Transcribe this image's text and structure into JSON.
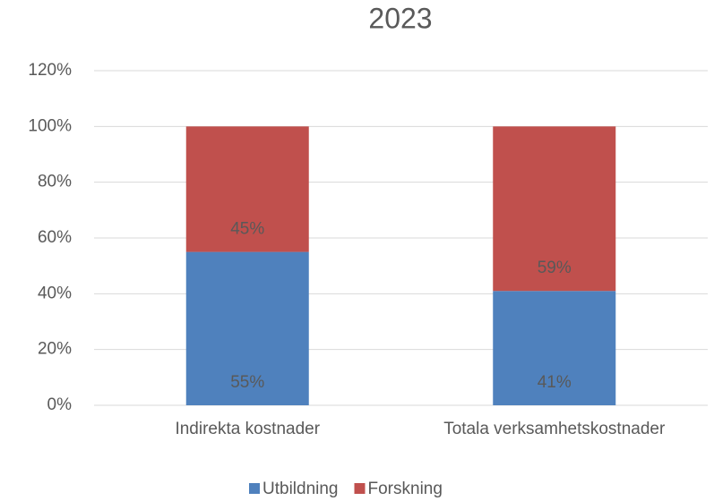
{
  "chart_data": {
    "type": "stacked_bar",
    "title": "2023",
    "categories": [
      "Indirekta kostnader",
      "Totala verksamhetskostnader"
    ],
    "series": [
      {
        "name": "Utbildning",
        "color": "#4f81bd",
        "values": [
          55,
          41
        ],
        "value_labels": [
          "55%",
          "41%"
        ]
      },
      {
        "name": "Forskning",
        "color": "#c0504d",
        "values": [
          45,
          59
        ],
        "value_labels": [
          "45%",
          "59%"
        ]
      }
    ],
    "ylim": [
      0,
      120
    ],
    "yticks": [
      {
        "value": 0,
        "label": "0%"
      },
      {
        "value": 20,
        "label": "20%"
      },
      {
        "value": 40,
        "label": "40%"
      },
      {
        "value": 60,
        "label": "60%"
      },
      {
        "value": 80,
        "label": "80%"
      },
      {
        "value": 100,
        "label": "100%"
      },
      {
        "value": 120,
        "label": "120%"
      }
    ],
    "grid": true,
    "legend": "bottom"
  }
}
